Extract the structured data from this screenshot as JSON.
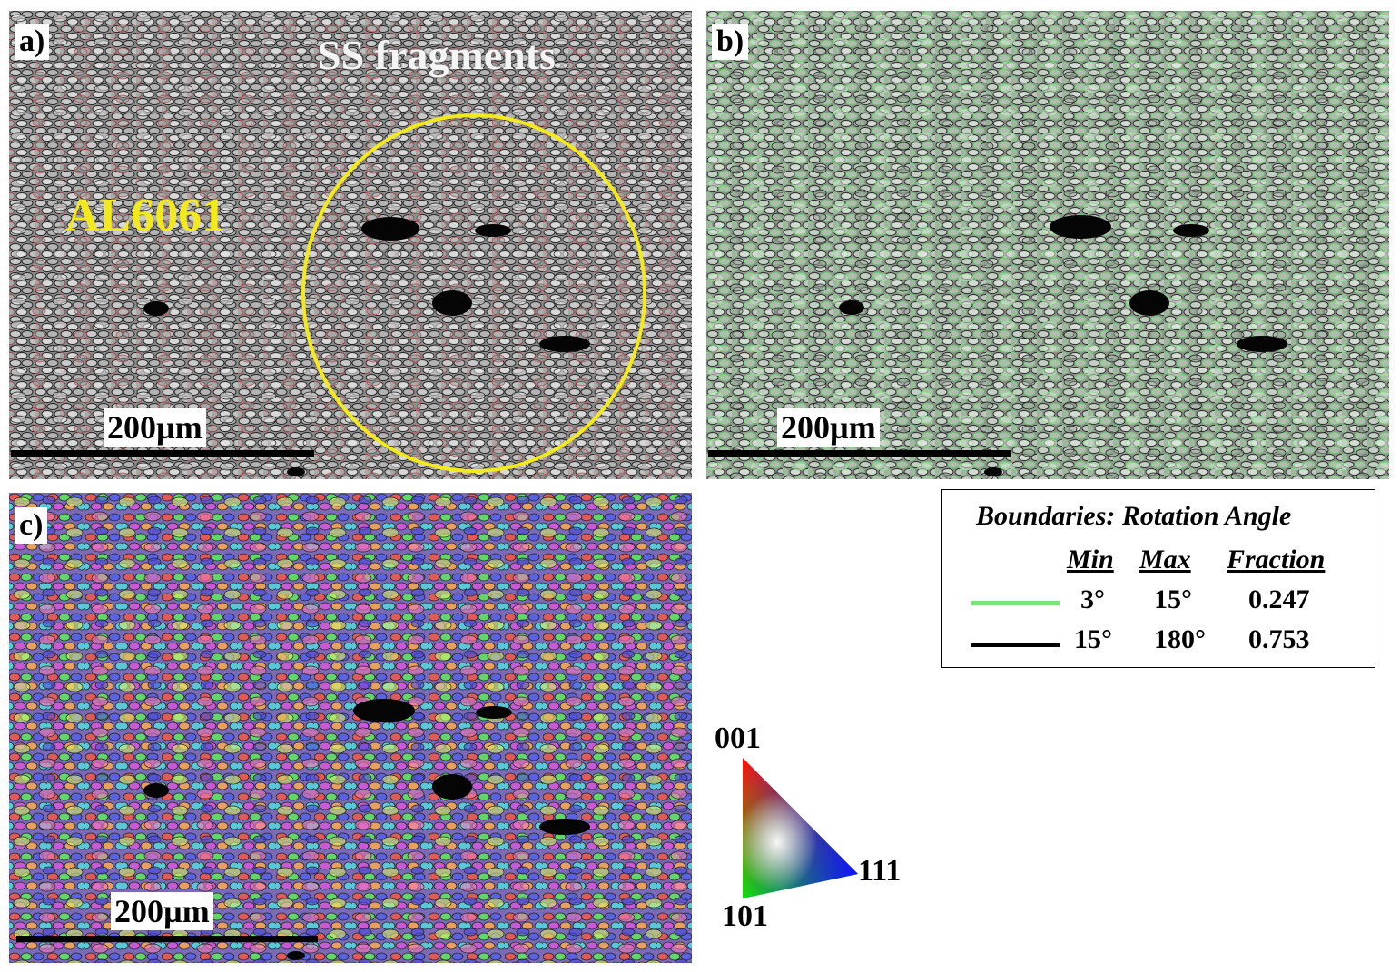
{
  "panels": {
    "a": {
      "label": "a)",
      "scale": "200µm",
      "alloy_label": "AL6061",
      "region_label": "SS fragments"
    },
    "b": {
      "label": "b)",
      "scale": "200µm"
    },
    "c": {
      "label": "c)",
      "scale": "200µm"
    }
  },
  "legend": {
    "title": "Boundaries: Rotation Angle",
    "headers": {
      "min": "Min",
      "max": "Max",
      "fraction": "Fraction"
    },
    "rows": [
      {
        "color": "#7fe07f",
        "min": "3°",
        "max": "15°",
        "fraction": "0.247"
      },
      {
        "color": "#000000",
        "min": "15°",
        "max": "180°",
        "fraction": "0.753"
      }
    ]
  },
  "ipf_key": {
    "top": "001",
    "right": "111",
    "bottom": "101"
  },
  "colors": {
    "annotation": "#f2ea1c",
    "low_angle_boundary": "#7fe07f",
    "high_angle_boundary": "#000000"
  }
}
